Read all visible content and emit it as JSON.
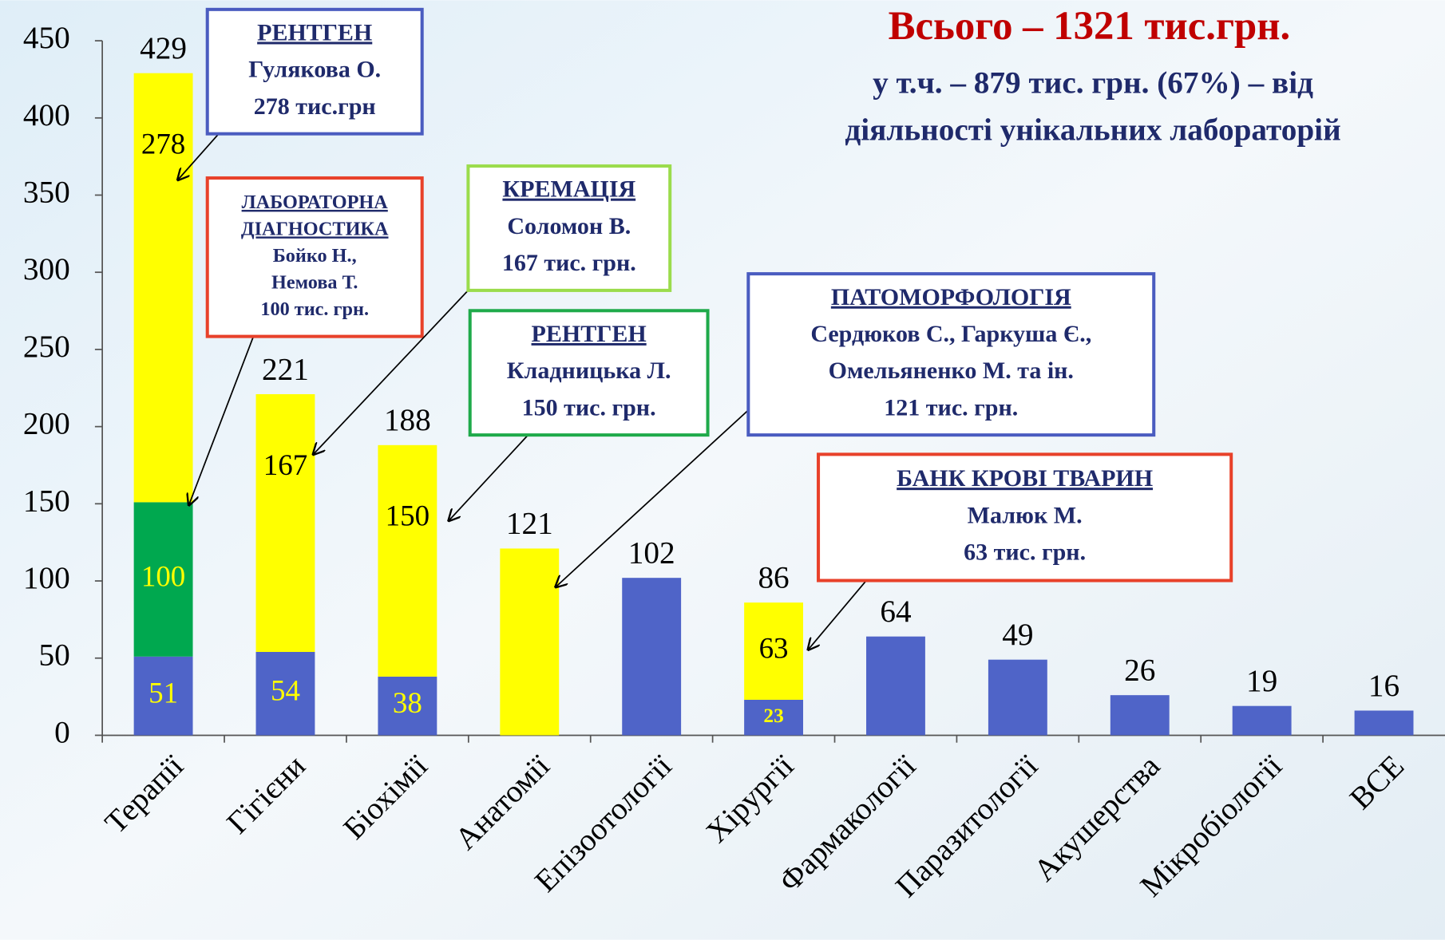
{
  "chart_data": {
    "type": "stacked_bar",
    "title": "Всього – 1321 тис.грн.",
    "subtitle": [
      "у т.ч. – 879 тис. грн. (67%) – від",
      "діяльності унікальних лабораторій"
    ],
    "categories": [
      "Терапії",
      "Гігієни",
      "Біохімії",
      "Анатомії",
      "Епізоотології",
      "Хірургії",
      "Фармакології",
      "Паразитології",
      "Акушерства",
      "Мікробіології",
      "ВСЕ"
    ],
    "series": [
      {
        "color": "#4f64c8",
        "label_color": "#ffff00",
        "values": [
          51,
          54,
          38,
          null,
          102,
          23,
          64,
          49,
          26,
          19,
          16
        ]
      },
      {
        "color": "#00a84f",
        "label_color": "#ffff00",
        "values": [
          100,
          null,
          null,
          null,
          null,
          null,
          null,
          null,
          null,
          null,
          null
        ]
      },
      {
        "color": "#ffff00",
        "label_color": "#000000",
        "values": [
          278,
          167,
          150,
          121,
          null,
          63,
          null,
          null,
          null,
          null,
          null
        ]
      }
    ],
    "totals": [
      429,
      221,
      188,
      121,
      102,
      86,
      64,
      49,
      26,
      19,
      16
    ],
    "ylim": [
      0,
      450
    ],
    "yticks": [
      0,
      50,
      100,
      150,
      200,
      250,
      300,
      350,
      400,
      450
    ],
    "annotations": [
      {
        "lines": [
          "РЕНТГЕН",
          "Гулякова О.",
          "278 тис.грн"
        ],
        "border": "#4a5cc0"
      },
      {
        "lines": [
          "ЛАБОРАТОРНА",
          "ДІАГНОСТИКА",
          "Бойко Н.,",
          "Немова Т.",
          "100 тис. грн."
        ],
        "border": "#e8412a"
      },
      {
        "lines": [
          "КРЕМАЦІЯ",
          "Соломон В.",
          "167 тис. грн."
        ],
        "border": "#9bdc4c"
      },
      {
        "lines": [
          "РЕНТГЕН",
          "Кладницька Л.",
          "150 тис. грн."
        ],
        "border": "#1faa4a"
      },
      {
        "lines": [
          "ПАТОМОРФОЛОГІЯ",
          "Сердюков С., Гаркуша Є.,",
          "Омельяненко М. та ін.",
          "121 тис. грн."
        ],
        "border": "#4a5cc0"
      },
      {
        "lines": [
          "БАНК КРОВІ ТВАРИН",
          "Малюк М.",
          "63 тис. грн."
        ],
        "border": "#e8412a"
      }
    ]
  }
}
